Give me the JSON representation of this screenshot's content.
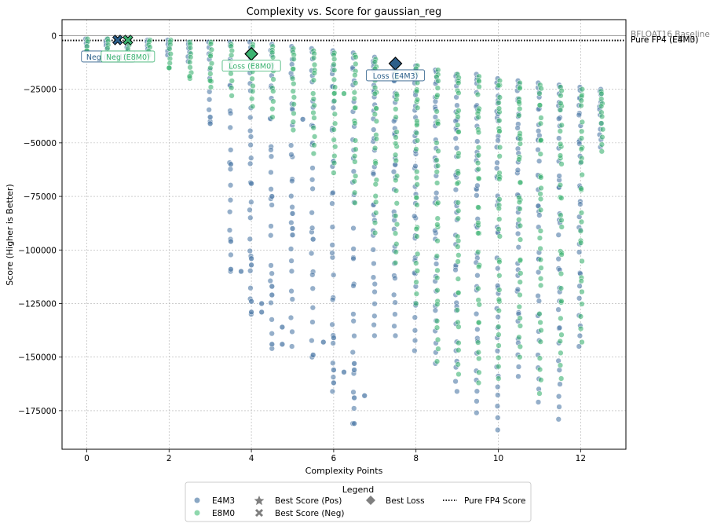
{
  "chart_data": {
    "type": "scatter",
    "title": "Complexity vs. Score for gaussian_reg",
    "xlabel": "Complexity Points",
    "ylabel": "Score (Higher is Better)",
    "xlim": [
      -0.6,
      13.1
    ],
    "ylim": [
      -193000,
      7500
    ],
    "xticks": [
      0,
      2,
      4,
      6,
      8,
      10,
      12
    ],
    "yticks": [
      0,
      -25000,
      -50000,
      -75000,
      -100000,
      -125000,
      -150000,
      -175000
    ],
    "xtick_labels": [
      "0",
      "2",
      "4",
      "6",
      "8",
      "10",
      "12"
    ],
    "ytick_labels": [
      "0",
      "−25000",
      "−50000",
      "−75000",
      "−100000",
      "−125000",
      "−150000",
      "−175000"
    ],
    "grid": true,
    "reference_lines": [
      {
        "label": "BFLOAT16 Baseline",
        "y": 0,
        "style": "solid",
        "color": "#999999"
      },
      {
        "label": "Pure FP4 (E4M3)",
        "y": -2200,
        "style": "dotted",
        "color": "#000000"
      },
      {
        "label": "Pure FP4 (E8M0)",
        "y": -2200,
        "style": "dotted",
        "color": "#000000"
      }
    ],
    "series": [
      {
        "name": "E4M3",
        "color": "#4e79a7",
        "columns": [
          {
            "x": 0,
            "min": -5000,
            "max": -1500,
            "n": 4
          },
          {
            "x": 0.5,
            "min": -6000,
            "max": -1500,
            "n": 5
          },
          {
            "x": 1,
            "min": -7000,
            "max": -1500,
            "n": 5
          },
          {
            "x": 1.5,
            "min": -8000,
            "max": -2000,
            "n": 5
          },
          {
            "x": 2,
            "min": -9000,
            "max": -2000,
            "n": 6
          },
          {
            "x": 2.5,
            "min": -12000,
            "max": -3000,
            "n": 6
          },
          {
            "x": 3,
            "min": -40000,
            "max": -3000,
            "n": 10
          },
          {
            "x": 3.5,
            "min": -110000,
            "max": -3000,
            "n": 20
          },
          {
            "x": 4,
            "min": -130000,
            "max": -3000,
            "n": 26
          },
          {
            "x": 4.5,
            "min": -146000,
            "max": -4000,
            "n": 26
          },
          {
            "x": 5,
            "min": -145000,
            "max": -5000,
            "n": 26
          },
          {
            "x": 5.5,
            "min": -150000,
            "max": -6000,
            "n": 26
          },
          {
            "x": 6,
            "min": -166000,
            "max": -7000,
            "n": 30
          },
          {
            "x": 6.5,
            "min": -181000,
            "max": -8000,
            "n": 30
          },
          {
            "x": 7,
            "min": -140000,
            "max": -10000,
            "n": 34
          },
          {
            "x": 7.5,
            "min": -140000,
            "max": -12000,
            "n": 34
          },
          {
            "x": 8,
            "min": -147000,
            "max": -14000,
            "n": 36
          },
          {
            "x": 8.5,
            "min": -153000,
            "max": -16000,
            "n": 36
          },
          {
            "x": 9,
            "min": -166000,
            "max": -18000,
            "n": 38
          },
          {
            "x": 9.5,
            "min": -176000,
            "max": -18000,
            "n": 38
          },
          {
            "x": 10,
            "min": -184000,
            "max": -20000,
            "n": 40
          },
          {
            "x": 10.5,
            "min": -159000,
            "max": -21000,
            "n": 38
          },
          {
            "x": 11,
            "min": -171000,
            "max": -22000,
            "n": 36
          },
          {
            "x": 11.5,
            "min": -179000,
            "max": -23000,
            "n": 36
          },
          {
            "x": 12,
            "min": -145000,
            "max": -24000,
            "n": 30
          },
          {
            "x": 12.5,
            "min": -52000,
            "max": -25000,
            "n": 12
          }
        ],
        "outliers": [
          {
            "x": 3.5,
            "y": -96000
          },
          {
            "x": 3.5,
            "y": -109000
          },
          {
            "x": 3.75,
            "y": -110000
          },
          {
            "x": 4,
            "y": -104000
          },
          {
            "x": 4,
            "y": -107000
          },
          {
            "x": 4,
            "y": -124000
          },
          {
            "x": 4,
            "y": -129000
          },
          {
            "x": 4.25,
            "y": -125000
          },
          {
            "x": 4.25,
            "y": -129000
          },
          {
            "x": 4.5,
            "y": -117000
          },
          {
            "x": 4.5,
            "y": -121000
          },
          {
            "x": 4.5,
            "y": -144000
          },
          {
            "x": 4.75,
            "y": -136000
          },
          {
            "x": 4.75,
            "y": -144000
          },
          {
            "x": 5.5,
            "y": -149000
          },
          {
            "x": 5.75,
            "y": -143000
          },
          {
            "x": 6,
            "y": -141000
          },
          {
            "x": 6,
            "y": -156000
          },
          {
            "x": 6,
            "y": -162000
          },
          {
            "x": 6.25,
            "y": -157000
          },
          {
            "x": 6.5,
            "y": -153000
          },
          {
            "x": 6.5,
            "y": -156000
          },
          {
            "x": 6.5,
            "y": -169000
          },
          {
            "x": 6.75,
            "y": -168000
          },
          {
            "x": 6.5,
            "y": -181000
          },
          {
            "x": 3,
            "y": -38000
          },
          {
            "x": 3,
            "y": -41000
          },
          {
            "x": 3.5,
            "y": -60000
          },
          {
            "x": 4,
            "y": -69000
          },
          {
            "x": 4.5,
            "y": -75000
          },
          {
            "x": 5,
            "y": -83000
          },
          {
            "x": 5,
            "y": -90000
          },
          {
            "x": 5,
            "y": -93000
          },
          {
            "x": 5.5,
            "y": -95000
          },
          {
            "x": 5.25,
            "y": -39000
          }
        ]
      },
      {
        "name": "E8M0",
        "color": "#3cb371",
        "columns": [
          {
            "x": 0,
            "min": -7000,
            "max": -1500,
            "n": 4
          },
          {
            "x": 0.5,
            "min": -8000,
            "max": -1500,
            "n": 5
          },
          {
            "x": 1,
            "min": -8000,
            "max": -1500,
            "n": 5
          },
          {
            "x": 1.5,
            "min": -9000,
            "max": -2000,
            "n": 6
          },
          {
            "x": 2,
            "min": -15000,
            "max": -2000,
            "n": 8
          },
          {
            "x": 2.5,
            "min": -20000,
            "max": -3000,
            "n": 9
          },
          {
            "x": 3,
            "min": -24000,
            "max": -3000,
            "n": 10
          },
          {
            "x": 3.5,
            "min": -28000,
            "max": -4000,
            "n": 10
          },
          {
            "x": 4,
            "min": -33000,
            "max": -4000,
            "n": 12
          },
          {
            "x": 4.5,
            "min": -38000,
            "max": -5000,
            "n": 12
          },
          {
            "x": 5,
            "min": -44000,
            "max": -6000,
            "n": 14
          },
          {
            "x": 5.5,
            "min": -55000,
            "max": -7000,
            "n": 16
          },
          {
            "x": 6,
            "min": -64000,
            "max": -8000,
            "n": 18
          },
          {
            "x": 6.5,
            "min": -78000,
            "max": -9000,
            "n": 20
          },
          {
            "x": 7,
            "min": -92000,
            "max": -11000,
            "n": 24
          },
          {
            "x": 7.5,
            "min": -106000,
            "max": -13000,
            "n": 26
          },
          {
            "x": 8,
            "min": -125000,
            "max": -14000,
            "n": 30
          },
          {
            "x": 8.5,
            "min": -152000,
            "max": -16000,
            "n": 34
          },
          {
            "x": 9,
            "min": -158000,
            "max": -18000,
            "n": 36
          },
          {
            "x": 9.5,
            "min": -162000,
            "max": -19000,
            "n": 36
          },
          {
            "x": 10,
            "min": -160000,
            "max": -21000,
            "n": 36
          },
          {
            "x": 10.5,
            "min": -150000,
            "max": -22000,
            "n": 34
          },
          {
            "x": 11,
            "min": -167000,
            "max": -23000,
            "n": 32
          },
          {
            "x": 11.5,
            "min": -160000,
            "max": -24000,
            "n": 32
          },
          {
            "x": 12,
            "min": -143000,
            "max": -25000,
            "n": 28
          },
          {
            "x": 12.5,
            "min": -54000,
            "max": -26000,
            "n": 12
          }
        ],
        "outliers": [
          {
            "x": 0,
            "y": -7000
          },
          {
            "x": 2,
            "y": -15000
          },
          {
            "x": 2.5,
            "y": -19000
          },
          {
            "x": 3,
            "y": -21000
          },
          {
            "x": 6.25,
            "y": -27000
          }
        ]
      }
    ],
    "highlights": [
      {
        "label": "Best Loss",
        "text": "Loss (E8M0)",
        "x": 4,
        "y": -8500,
        "marker": "diamond",
        "color": "#3cb371"
      },
      {
        "label": "Best Loss",
        "text": "Loss (E4M3)",
        "x": 7.5,
        "y": -13000,
        "marker": "diamond",
        "color": "#2c5f8a"
      },
      {
        "label": "Best Score (Neg)",
        "text": "Neg (E4M3)",
        "x": 0.75,
        "y": -2000,
        "marker": "x",
        "color": "#2c5f8a"
      },
      {
        "label": "Best Score (Neg)",
        "text": "Neg (E8M0)",
        "x": 1,
        "y": -2000,
        "marker": "x",
        "color": "#3cb371"
      }
    ],
    "legend": {
      "title": "Legend",
      "placement": "bottom-center",
      "entries": [
        {
          "label": "E4M3",
          "marker": "dot",
          "color": "#8aa7c4"
        },
        {
          "label": "E8M0",
          "marker": "dot",
          "color": "#8fd8ad"
        },
        {
          "label": "Best Score (Pos)",
          "marker": "star",
          "color": "#7f7f7f"
        },
        {
          "label": "Best Score (Neg)",
          "marker": "x",
          "color": "#7f7f7f"
        },
        {
          "label": "Best Loss",
          "marker": "diamond",
          "color": "#7f7f7f"
        },
        {
          "label": "Pure FP4 Score",
          "marker": "dotted-line",
          "color": "#000000"
        }
      ]
    }
  }
}
